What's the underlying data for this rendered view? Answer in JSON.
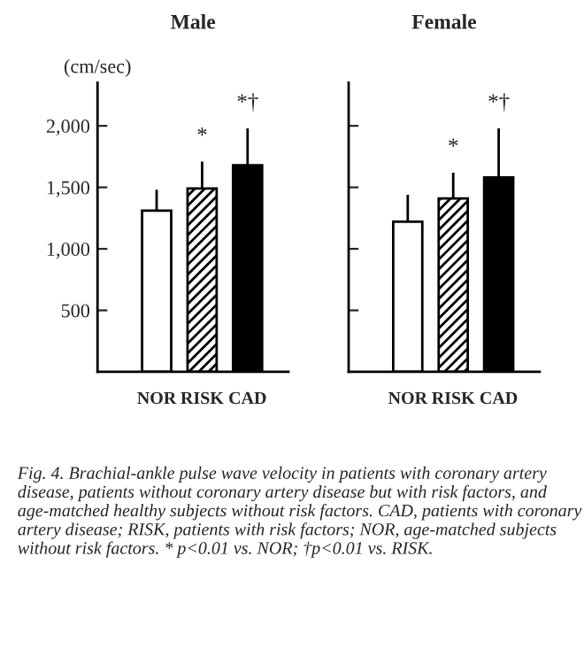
{
  "chart_data": [
    {
      "type": "bar",
      "title": "Male",
      "ylabel": "(cm/sec)",
      "categories": [
        "NOR",
        "RISK",
        "CAD"
      ],
      "values": [
        1310,
        1490,
        1680
      ],
      "errors": [
        [
          1310,
          1480
        ],
        [
          1490,
          1710
        ],
        [
          1680,
          1980
        ]
      ],
      "colors": [
        "#ffffff",
        "#000000",
        "#000000"
      ],
      "ylim": [
        0,
        2350
      ],
      "yticks": [
        {
          "value": 500,
          "label": "500"
        },
        {
          "value": 1000,
          "label": "1,000"
        },
        {
          "value": 1500,
          "label": "1,500"
        },
        {
          "value": 2000,
          "label": "2,000"
        }
      ],
      "annotations": [
        "*",
        "*†",
        "Fig. 4. Brachial-ankle pulse wave velocity in patients with coronary artery disease, patients without coronary artery disease but with risk factors, and age-matched healthy subjects without risk factors. CAD, patients with coronary artery disease; RISK, patients with risk factors; NOR, age-matched subjects without risk factors. * p<0.01 vs. NOR; †p<0.01 vs. RISK."
      ]
    },
    {
      "type": "bar",
      "title": "Female",
      "categories": [
        "NOR",
        "RISK",
        "CAD"
      ],
      "values": [
        1220,
        1410,
        1580
      ],
      "errors": [
        [
          1220,
          1440
        ],
        [
          1410,
          1620
        ],
        [
          1580,
          1980
        ]
      ],
      "colors": [
        "#ffffff",
        "#000000",
        "#000000"
      ],
      "ylim": [
        0,
        2350
      ],
      "yticks": [
        500,
        1000,
        1500,
        2000
      ],
      "tick_labels": "x",
      "annotations": [
        "*",
        "*†"
      ]
    }
  ]
}
